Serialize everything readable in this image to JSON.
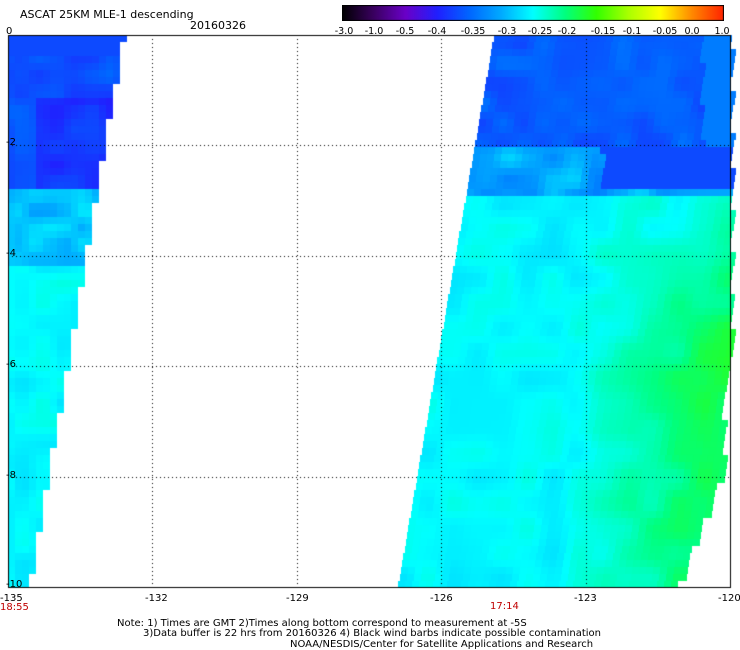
{
  "header": {
    "title": "ASCAT 25KM MLE-1 descending",
    "date": "20160326"
  },
  "colorbar": {
    "labels": [
      "-3.0",
      "-1.0",
      "-0.5",
      "-0.4",
      "-0.35",
      "-0.3",
      "-0.25",
      "-0.2",
      "-0.15",
      "-0.1",
      "-0.05",
      "0.0",
      "1.0"
    ],
    "colors": [
      "#000000",
      "#3a0060",
      "#6a00c8",
      "#2020ff",
      "#0066ff",
      "#00aaff",
      "#00ffff",
      "#00ff80",
      "#33ff00",
      "#aaff00",
      "#ffff00",
      "#ff8800",
      "#ff2200"
    ]
  },
  "axes": {
    "x_ticks": [
      "-135",
      "-132",
      "-129",
      "-126",
      "-123",
      "-120"
    ],
    "y_ticks": [
      "0",
      "-2",
      "-4",
      "-6",
      "-8",
      "-10"
    ]
  },
  "times": {
    "left": "18:55",
    "middle": "17:14"
  },
  "notes": {
    "line1": "Note: 1) Times are GMT 2)Times along bottom correspond to measurement at -5S",
    "line2": "3)Data buffer is 22 hrs from 20160326 4) Black wind barbs indicate possible contamination",
    "line3": "NOAA/NESDIS/Center for Satellite Applications and Research"
  },
  "map_data": {
    "lon_range": [
      -135,
      -120
    ],
    "lat_range": [
      -10,
      0
    ],
    "swaths": [
      {
        "name": "west",
        "lon_min": -134.98,
        "lon_max_top": -132.65,
        "lon_max_bottom": -134.6
      },
      {
        "name": "east",
        "lon_min_top": -124.9,
        "lon_min_bottom": -126.9,
        "lon_max": -120
      }
    ]
  }
}
